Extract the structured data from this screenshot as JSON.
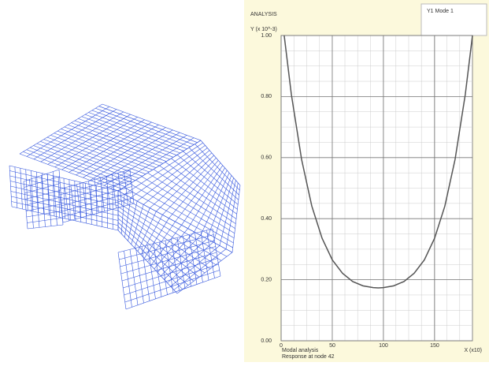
{
  "chart_data": {
    "type": "line",
    "title": "ANALYSIS",
    "y_label": "Y (x 10^-3)",
    "x_label": "X (x10)",
    "notes": [
      "Modal analysis",
      "Response at node 42"
    ],
    "x": [
      3,
      10,
      20,
      30,
      40,
      50,
      60,
      70,
      80,
      90,
      95,
      100,
      110,
      120,
      130,
      140,
      150,
      160,
      170,
      180,
      187
    ],
    "series": [
      {
        "name": "Y1 Mode 1",
        "color": "#555555",
        "values": [
          1.0,
          0.807,
          0.594,
          0.441,
          0.336,
          0.265,
          0.221,
          0.194,
          0.18,
          0.174,
          0.173,
          0.174,
          0.18,
          0.194,
          0.221,
          0.265,
          0.336,
          0.441,
          0.594,
          0.807,
          1.0
        ]
      }
    ],
    "xlim": [
      0,
      187
    ],
    "xticks": [
      0,
      50,
      100,
      150
    ],
    "ylim": [
      0,
      1
    ],
    "yticks": [
      {
        "value": 0,
        "label": "0.00"
      },
      {
        "value": 0.2,
        "label": "0.20"
      },
      {
        "value": 0.4,
        "label": "0.40"
      },
      {
        "value": 0.6,
        "label": "0.60"
      },
      {
        "value": 0.8,
        "label": "0.80"
      },
      {
        "value": 1,
        "label": "1.00"
      }
    ],
    "grid": true
  }
}
